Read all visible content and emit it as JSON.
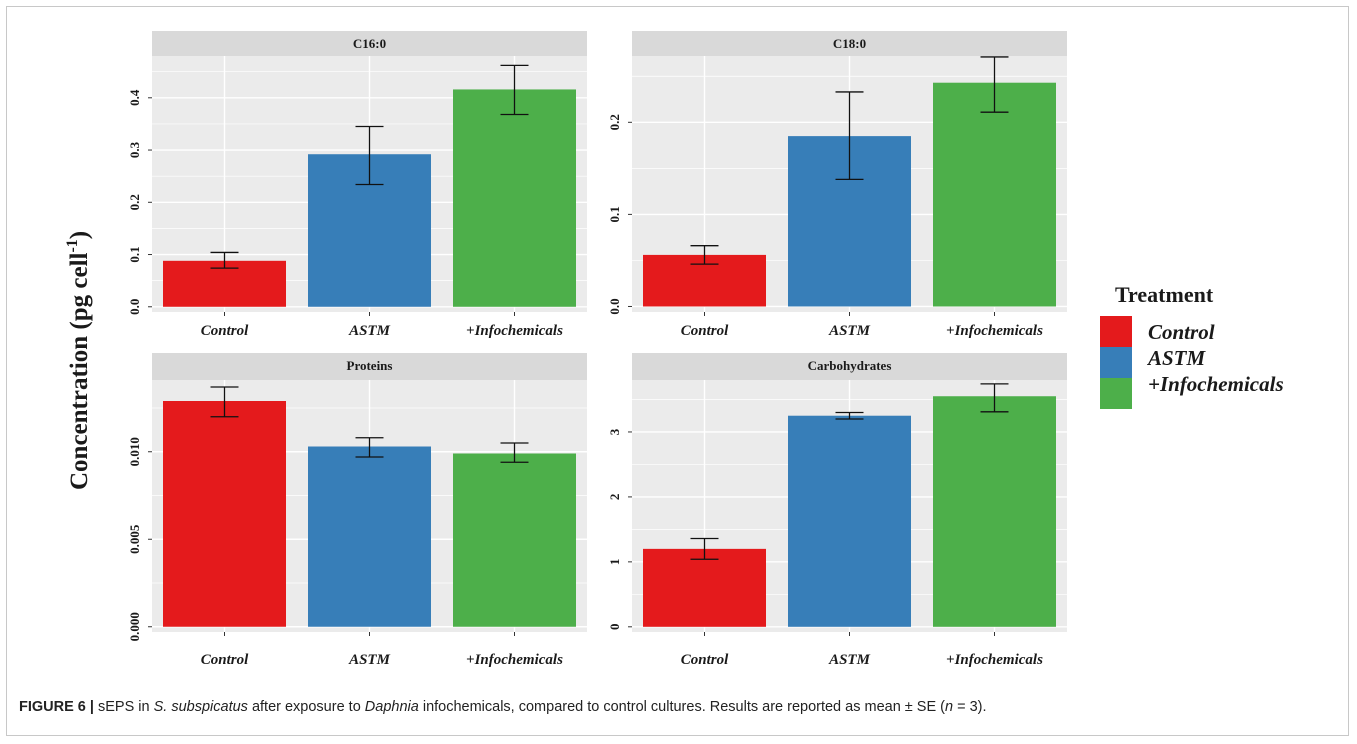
{
  "figure": {
    "y_axis_label": "Concentration (pg cell",
    "y_axis_label_sup": "-1",
    "y_axis_label_close": ")",
    "caption_label": "FIGURE 6 |",
    "caption_parts": [
      {
        "text": " sEPS in ",
        "italic": false
      },
      {
        "text": "S. subspicatus",
        "italic": true
      },
      {
        "text": " after exposure to ",
        "italic": false
      },
      {
        "text": "Daphnia",
        "italic": true
      },
      {
        "text": " infochemicals, compared to control cultures. Results are reported as mean ± SE (",
        "italic": false
      },
      {
        "text": "n",
        "italic": true
      },
      {
        "text": " = 3).",
        "italic": false
      }
    ]
  },
  "legend": {
    "title": "Treatment",
    "entries": [
      {
        "label": "Control",
        "color": "#e41a1c"
      },
      {
        "label": "ASTM",
        "color": "#377eb8"
      },
      {
        "label": "+Infochemicals",
        "color": "#4daf4a"
      }
    ]
  },
  "chart_data": [
    {
      "type": "bar",
      "title": "C16:0",
      "categories": [
        "Control",
        "ASTM",
        "+Infochemicals"
      ],
      "values": [
        0.088,
        0.292,
        0.416
      ],
      "error_low": [
        0.074,
        0.234,
        0.368
      ],
      "error_high": [
        0.104,
        0.345,
        0.462
      ],
      "ylim": [
        -0.01,
        0.48
      ],
      "yticks": [
        0.0,
        0.1,
        0.2,
        0.3,
        0.4
      ],
      "ytick_labels": [
        "0.0",
        "0.1",
        "0.2",
        "0.3",
        "0.4"
      ],
      "colors": [
        "#e41a1c",
        "#377eb8",
        "#4daf4a"
      ]
    },
    {
      "type": "bar",
      "title": "C18:0",
      "categories": [
        "Control",
        "ASTM",
        "+Infochemicals"
      ],
      "values": [
        0.056,
        0.185,
        0.243
      ],
      "error_low": [
        0.046,
        0.138,
        0.211
      ],
      "error_high": [
        0.066,
        0.233,
        0.271
      ],
      "ylim": [
        -0.006,
        0.272
      ],
      "yticks": [
        0.0,
        0.1,
        0.2
      ],
      "ytick_labels": [
        "0.0",
        "0.1",
        "0.2"
      ],
      "colors": [
        "#e41a1c",
        "#377eb8",
        "#4daf4a"
      ]
    },
    {
      "type": "bar",
      "title": "Proteins",
      "categories": [
        "Control",
        "ASTM",
        "+Infochemicals"
      ],
      "values": [
        0.0129,
        0.0103,
        0.0099
      ],
      "error_low": [
        0.012,
        0.0097,
        0.0094
      ],
      "error_high": [
        0.0137,
        0.0108,
        0.0105
      ],
      "ylim": [
        -0.0003,
        0.0141
      ],
      "yticks": [
        0.0,
        0.005,
        0.01
      ],
      "ytick_labels": [
        "0.000",
        "0.005",
        "0.010"
      ],
      "colors": [
        "#e41a1c",
        "#377eb8",
        "#4daf4a"
      ]
    },
    {
      "type": "bar",
      "title": "Carbohydrates",
      "categories": [
        "Control",
        "ASTM",
        "+Infochemicals"
      ],
      "values": [
        1.2,
        3.25,
        3.55
      ],
      "error_low": [
        1.04,
        3.2,
        3.31
      ],
      "error_high": [
        1.36,
        3.3,
        3.74
      ],
      "ylim": [
        -0.08,
        3.8
      ],
      "yticks": [
        0,
        1,
        2,
        3
      ],
      "ytick_labels": [
        "0",
        "1",
        "2",
        "3"
      ],
      "colors": [
        "#e41a1c",
        "#377eb8",
        "#4daf4a"
      ]
    }
  ]
}
